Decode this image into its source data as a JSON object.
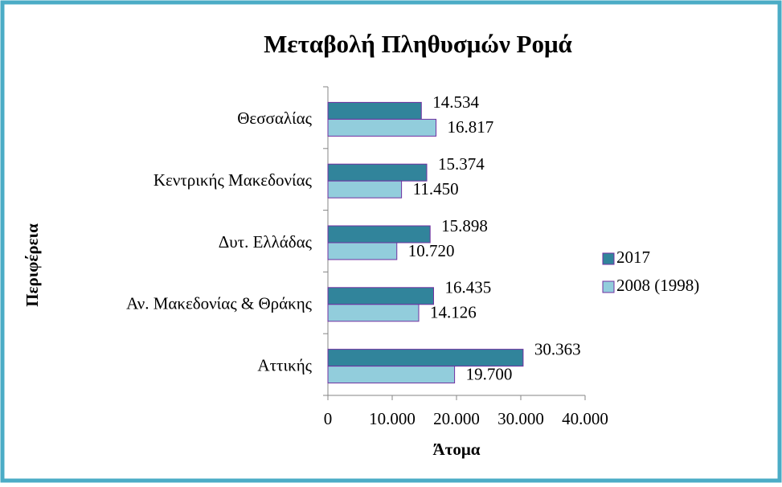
{
  "chart_data": {
    "type": "hbar",
    "title": "Μεταβολή Πληθυσμών Ρομά",
    "x_label": "Άτομα",
    "y_label": "Περιφέρεια",
    "categories": [
      "Θεσσαλίας",
      "Κεντρικής Μακεδονίας",
      "Δυτ. Ελλάδας",
      "Αν. Μακεδονίας & Θράκης",
      "Αττικής"
    ],
    "series": [
      {
        "name": "2017",
        "color": "#31849b",
        "values": [
          14534,
          15374,
          15898,
          16435,
          30363
        ],
        "value_labels": [
          "14.534",
          "15.374",
          "15.898",
          "16.435",
          "30.363"
        ]
      },
      {
        "name": "2008 (1998)",
        "color": "#92cddc",
        "values": [
          16817,
          11450,
          10720,
          14126,
          19700
        ],
        "value_labels": [
          "16.817",
          "11.450",
          "10.720",
          "14.126",
          "19.700"
        ]
      }
    ],
    "xlim": [
      0,
      40000
    ],
    "xticks": [
      0,
      {
        "value": 10000,
        "label": "10.000"
      },
      {
        "value": 20000,
        "label": "20.000"
      },
      {
        "value": 30000,
        "label": "30.000"
      },
      {
        "value": 40000,
        "label": "40.000"
      }
    ],
    "legend": "right"
  }
}
